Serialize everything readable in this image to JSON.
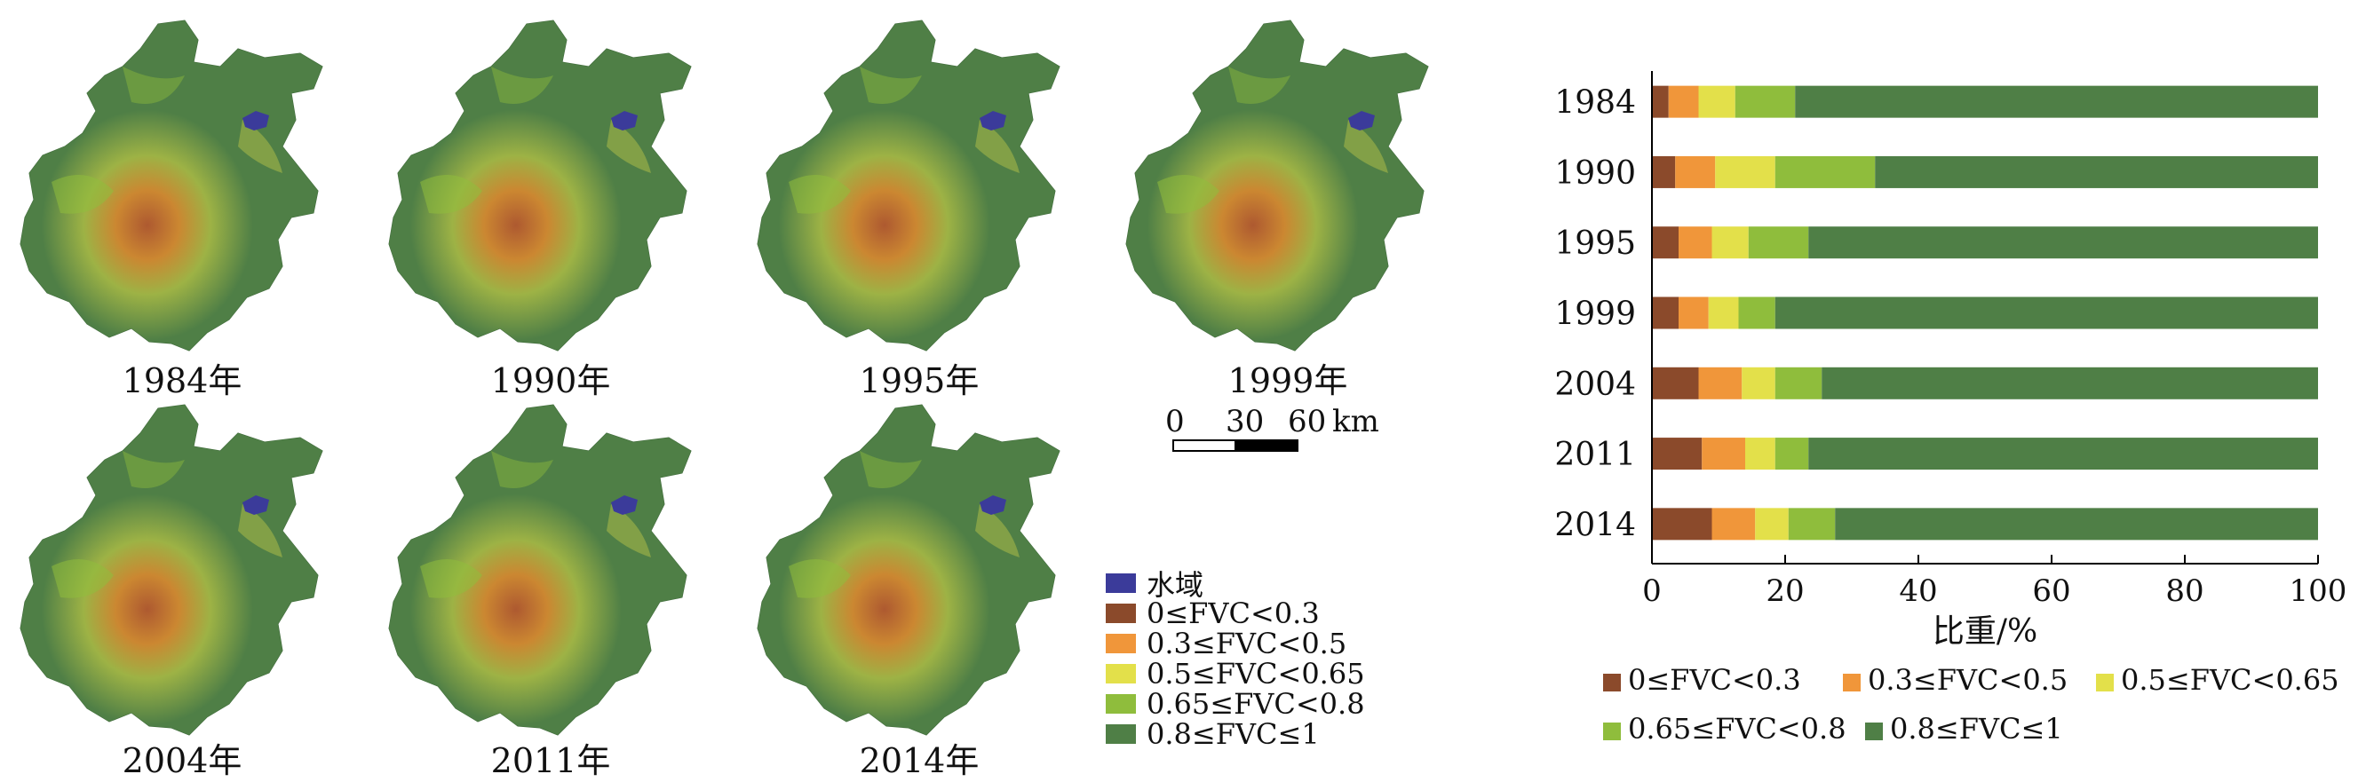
{
  "maps": {
    "years": [
      "1984年",
      "1990年",
      "1995年",
      "1999年",
      "2004年",
      "2011年",
      "2014年"
    ]
  },
  "scale": {
    "t0": "0",
    "t30": "30",
    "t60": "60",
    "unit": "km"
  },
  "map_legend": [
    {
      "label": "水域",
      "color": "#3b3b9a"
    },
    {
      "label": "0≤FVC<0.3",
      "color": "#8b4a2b"
    },
    {
      "label": "0.3≤FVC<0.5",
      "color": "#f0963a"
    },
    {
      "label": "0.5≤FVC<0.65",
      "color": "#e3e04a"
    },
    {
      "label": "0.65≤FVC<0.8",
      "color": "#8fbd3c"
    },
    {
      "label": "0.8≤FVC≤1",
      "color": "#4f7f46"
    }
  ],
  "chart_data": {
    "type": "bar",
    "orientation": "horizontal",
    "stacked": true,
    "categories": [
      "1984",
      "1990",
      "1995",
      "1999",
      "2004",
      "2011",
      "2014"
    ],
    "xlabel": "比重/%",
    "xlim": [
      0,
      100
    ],
    "xticks": [
      0,
      20,
      40,
      60,
      80,
      100
    ],
    "legend_position": "bottom",
    "series": [
      {
        "name": "0≤FVC<0.3",
        "color": "#8b4a2b",
        "values": [
          2.5,
          3.5,
          4.0,
          4.0,
          7.0,
          7.5,
          9.0
        ]
      },
      {
        "name": "0.3≤FVC<0.5",
        "color": "#f0963a",
        "values": [
          4.5,
          6.0,
          5.0,
          4.5,
          6.5,
          6.5,
          6.5
        ]
      },
      {
        "name": "0.5≤FVC<0.65",
        "color": "#e3e04a",
        "values": [
          5.5,
          9.0,
          5.5,
          4.5,
          5.0,
          4.5,
          5.0
        ]
      },
      {
        "name": "0.65≤FVC<0.8",
        "color": "#8fbd3c",
        "values": [
          9.0,
          15.0,
          9.0,
          5.5,
          7.0,
          5.0,
          7.0
        ]
      },
      {
        "name": "0.8≤FVC≤1",
        "color": "#4f7f46",
        "values": [
          78.5,
          66.5,
          76.5,
          81.5,
          74.5,
          76.5,
          72.5
        ]
      }
    ]
  }
}
